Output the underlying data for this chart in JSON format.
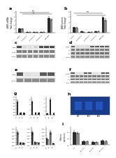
{
  "fig_width": 1.5,
  "fig_height": 1.97,
  "bg_color": "#ffffff",
  "panel_a_bars": {
    "groups": [
      {
        "label": "control",
        "dark": 1.0,
        "light": 0.95
      },
      {
        "label": "siASNS#1",
        "dark": 0.12,
        "light": 0.1
      },
      {
        "label": "siASNS#2",
        "dark": 0.1,
        "light": 0.09
      },
      {
        "label": "siASNS#3",
        "dark": 0.18,
        "light": 0.14
      },
      {
        "label": "overexp",
        "dark": 3.6,
        "light": 3.2
      }
    ],
    "ylim": [
      0,
      5.2
    ],
    "yticks": [
      0,
      1,
      2,
      3,
      4,
      5
    ],
    "ylabel": "ASNS mRNA\n(fold change)"
  },
  "panel_b_bars": {
    "groups": [
      {
        "label": "control",
        "dark": 1.0,
        "light": 0.92
      },
      {
        "label": "siASNS#1",
        "dark": 0.22,
        "light": 0.18
      },
      {
        "label": "siASNS#2",
        "dark": 0.18,
        "light": 0.15
      },
      {
        "label": "siASNS#3",
        "dark": 0.3,
        "light": 0.25
      },
      {
        "label": "overexp",
        "dark": 2.8,
        "light": 2.4
      }
    ],
    "ylim": [
      0,
      4.0
    ],
    "yticks": [
      0,
      1,
      2,
      3,
      4
    ],
    "ylabel": "ASNS protein\n(fold change)"
  },
  "dark_bar_color": "#2b2b2b",
  "light_bar_color": "#8a8a8a",
  "blot_bg_light": "#f0f0f0",
  "blot_bg_dark": "#c8c8c8",
  "blot_band_dark": "#333333",
  "blot_band_mid": "#888888",
  "blot_band_light": "#aaaaaa",
  "white": "#ffffff",
  "panel_g_top": {
    "sub1": {
      "vals": [
        2.2,
        0.35,
        0.28
      ],
      "ylim": [
        0,
        3.0
      ]
    },
    "sub2": {
      "vals": [
        2.5,
        0.42,
        0.38
      ],
      "ylim": [
        0,
        3.5
      ]
    },
    "sub3": {
      "vals": [
        0.3,
        3.8,
        0.4
      ],
      "ylim": [
        0,
        4.5
      ]
    }
  },
  "panel_g_bot": {
    "sub1": {
      "dark": [
        1.0,
        0.18,
        0.15
      ],
      "light": [
        0.9,
        0.15,
        0.12
      ],
      "ylim": [
        0,
        1.4
      ]
    },
    "sub2": {
      "dark": [
        1.0,
        0.22,
        0.18
      ],
      "light": [
        0.9,
        0.18,
        0.15
      ],
      "ylim": [
        0,
        1.4
      ]
    },
    "sub3": {
      "dark": [
        0.5,
        1.0,
        0.12
      ],
      "light": [
        0.4,
        0.9,
        0.1
      ],
      "ylim": [
        0,
        1.4
      ]
    }
  },
  "panel_h_bg": "#1a3a8a",
  "panel_h_band_color": "#2255bb",
  "panel_i_bars": {
    "groups": [
      {
        "label": "ctrl",
        "dark": 1.0,
        "light": 0.92
      },
      {
        "label": "siASNS1",
        "dark": 0.3,
        "light": 0.28
      },
      {
        "label": "siASNS2",
        "dark": 0.25,
        "light": 0.22
      },
      {
        "label": "siASNS3",
        "dark": 0.35,
        "light": 0.3
      }
    ],
    "ylim": [
      0,
      1.4
    ],
    "ylabel": "Relative\nexpression"
  }
}
